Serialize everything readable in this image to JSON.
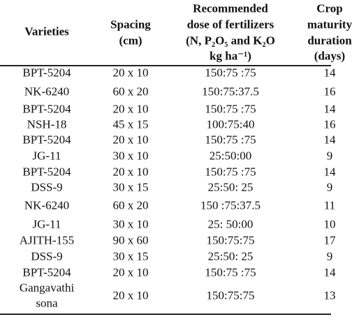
{
  "table": {
    "headers": [
      [
        "Varieties"
      ],
      [
        "Spacing",
        "(cm)"
      ],
      [
        "Recommended",
        "dose of fertilizers",
        "(N, P₂O₅ and K₂O",
        "kg ha⁻¹)"
      ],
      [
        "Crop",
        "maturity",
        "duration",
        "(days)"
      ]
    ],
    "rows": [
      [
        "BPT-5204",
        "20 x 10",
        "150:75 :75",
        "14"
      ],
      [
        "NK-6240",
        "60 x 20",
        "150:75:37.5",
        "16"
      ],
      [
        "BPT-5204",
        "20 x 10",
        "150:75 :75",
        "14"
      ],
      [
        "NSH-18",
        "45 x 15",
        "100:75:40",
        "16"
      ],
      [
        "BPT-5204",
        "20 x 10",
        "150:75 :75",
        "14"
      ],
      [
        "JG-11",
        "30 x 10",
        "25:50:00",
        "9"
      ],
      [
        "BPT-5204",
        "20 x 10",
        "150:75 :75",
        "14"
      ],
      [
        "DSS-9",
        "30 x 15",
        "25:50: 25",
        "9"
      ],
      [
        "NK-6240",
        "60 x 20",
        "150 :75:37.5",
        "11"
      ],
      [
        "JG-11",
        "30 x 10",
        "25: 50:00",
        "10"
      ],
      [
        "AJITH-155",
        "90 x 60",
        "150:75:75",
        "17"
      ],
      [
        "DSS-9",
        "30 x 15",
        "25:50: 25",
        "9"
      ],
      [
        "BPT-5204",
        "20 x 10",
        "150:75 :75",
        "14"
      ],
      [
        [
          "Gangavathi",
          "sona"
        ],
        "20 x 10",
        "150:75:75",
        "13"
      ]
    ]
  }
}
